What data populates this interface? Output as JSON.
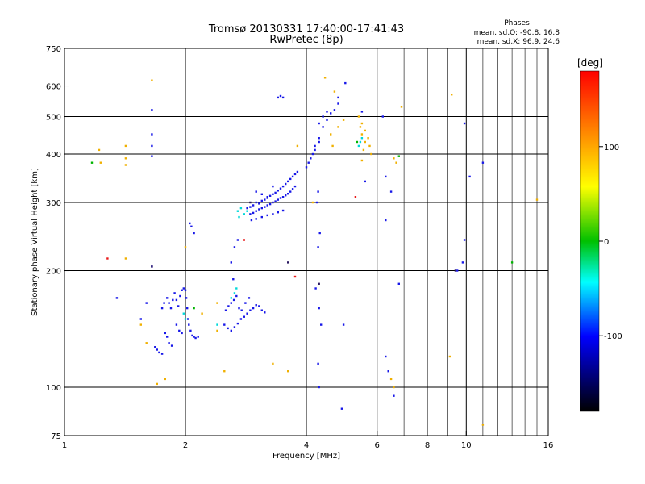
{
  "header": {
    "title_line1": "Tromsø 20130331 17:40:00-17:41:43",
    "title_line2": "RwPretec (8p)"
  },
  "phases": {
    "heading": "Phases",
    "line_o": "mean, sd,O: -90.8, 16.8",
    "line_x": "mean, sd,X:  96.9, 24.6"
  },
  "chart_data": {
    "type": "scatter",
    "xlabel": "Frequency [MHz]",
    "ylabel": "Stationary phase Virtual Height [km]",
    "xscale": "log",
    "yscale": "log",
    "xlim": [
      1,
      16
    ],
    "ylim": [
      75,
      750
    ],
    "x_ticks": [
      1,
      2,
      4,
      6,
      8,
      10,
      16
    ],
    "y_ticks": [
      75,
      100,
      200,
      300,
      400,
      500,
      600,
      750
    ],
    "x_major_grid": [
      2,
      4,
      6,
      8,
      10
    ],
    "x_minor_grid": [
      7,
      9,
      11,
      12,
      13,
      14,
      15
    ],
    "y_grid": [
      100,
      200,
      300,
      400,
      500,
      600
    ],
    "grid": true,
    "colorbar": {
      "label": "[deg]",
      "range": [
        -180,
        180
      ],
      "ticks": [
        100,
        0,
        -100
      ],
      "colors": [
        "#ff0000",
        "#ff8000",
        "#ffff00",
        "#00c000",
        "#00ffff",
        "#0000ff",
        "#000000"
      ]
    },
    "series": [
      {
        "mode": "O",
        "color": "#1818e8",
        "points": [
          [
            1.65,
            450
          ],
          [
            1.65,
            420
          ],
          [
            1.65,
            395
          ],
          [
            1.65,
            520
          ],
          [
            1.65,
            205
          ],
          [
            1.35,
            170
          ],
          [
            1.75,
            160
          ],
          [
            1.77,
            165
          ],
          [
            1.8,
            170
          ],
          [
            1.82,
            165
          ],
          [
            1.84,
            160
          ],
          [
            1.86,
            168
          ],
          [
            1.88,
            175
          ],
          [
            1.9,
            168
          ],
          [
            1.92,
            162
          ],
          [
            1.94,
            172
          ],
          [
            1.96,
            178
          ],
          [
            1.98,
            180
          ],
          [
            2.0,
            178
          ],
          [
            2.01,
            170
          ],
          [
            2.02,
            160
          ],
          [
            2.03,
            150
          ],
          [
            2.04,
            145
          ],
          [
            2.06,
            140
          ],
          [
            2.08,
            136
          ],
          [
            2.1,
            135
          ],
          [
            2.12,
            134
          ],
          [
            2.15,
            135
          ],
          [
            1.78,
            138
          ],
          [
            1.8,
            135
          ],
          [
            1.82,
            130
          ],
          [
            1.85,
            128
          ],
          [
            1.7,
            125
          ],
          [
            1.72,
            123
          ],
          [
            1.75,
            122
          ],
          [
            1.68,
            127
          ],
          [
            1.9,
            145
          ],
          [
            1.93,
            140
          ],
          [
            1.96,
            138
          ],
          [
            2.5,
            145
          ],
          [
            2.55,
            142
          ],
          [
            2.6,
            140
          ],
          [
            2.65,
            143
          ],
          [
            2.7,
            146
          ],
          [
            2.75,
            150
          ],
          [
            2.8,
            152
          ],
          [
            2.85,
            155
          ],
          [
            2.9,
            158
          ],
          [
            2.95,
            160
          ],
          [
            3.0,
            163
          ],
          [
            3.05,
            162
          ],
          [
            3.1,
            158
          ],
          [
            3.15,
            156
          ],
          [
            2.52,
            158
          ],
          [
            2.56,
            162
          ],
          [
            2.6,
            165
          ],
          [
            2.64,
            168
          ],
          [
            2.68,
            172
          ],
          [
            2.72,
            160
          ],
          [
            2.76,
            158
          ],
          [
            2.82,
            165
          ],
          [
            2.88,
            170
          ],
          [
            2.63,
            190
          ],
          [
            2.6,
            210
          ],
          [
            2.65,
            230
          ],
          [
            2.7,
            240
          ],
          [
            2.05,
            265
          ],
          [
            2.07,
            260
          ],
          [
            2.1,
            250
          ],
          [
            2.85,
            290
          ],
          [
            2.9,
            292
          ],
          [
            2.95,
            295
          ],
          [
            3.0,
            300
          ],
          [
            3.05,
            298
          ],
          [
            3.1,
            303
          ],
          [
            3.15,
            305
          ],
          [
            3.2,
            308
          ],
          [
            3.25,
            312
          ],
          [
            3.3,
            315
          ],
          [
            3.35,
            318
          ],
          [
            3.4,
            322
          ],
          [
            3.45,
            326
          ],
          [
            3.5,
            330
          ],
          [
            3.55,
            335
          ],
          [
            3.6,
            340
          ],
          [
            3.65,
            345
          ],
          [
            3.7,
            350
          ],
          [
            3.75,
            355
          ],
          [
            3.8,
            360
          ],
          [
            2.9,
            280
          ],
          [
            2.95,
            282
          ],
          [
            3.0,
            285
          ],
          [
            3.05,
            288
          ],
          [
            3.1,
            290
          ],
          [
            3.15,
            292
          ],
          [
            3.2,
            295
          ],
          [
            3.25,
            297
          ],
          [
            3.3,
            300
          ],
          [
            3.35,
            302
          ],
          [
            3.4,
            305
          ],
          [
            3.45,
            308
          ],
          [
            3.5,
            310
          ],
          [
            3.55,
            313
          ],
          [
            3.6,
            316
          ],
          [
            3.65,
            320
          ],
          [
            3.7,
            325
          ],
          [
            3.75,
            330
          ],
          [
            2.92,
            270
          ],
          [
            3.0,
            272
          ],
          [
            3.1,
            275
          ],
          [
            3.2,
            278
          ],
          [
            3.3,
            280
          ],
          [
            3.4,
            283
          ],
          [
            3.5,
            286
          ],
          [
            3.0,
            320
          ],
          [
            3.1,
            315
          ],
          [
            3.2,
            310
          ],
          [
            3.3,
            330
          ],
          [
            3.4,
            560
          ],
          [
            3.45,
            565
          ],
          [
            3.5,
            560
          ],
          [
            4.2,
            420
          ],
          [
            4.3,
            440
          ],
          [
            4.4,
            470
          ],
          [
            4.5,
            490
          ],
          [
            4.6,
            510
          ],
          [
            4.7,
            520
          ],
          [
            4.8,
            540
          ],
          [
            4.3,
            480
          ],
          [
            4.4,
            500
          ],
          [
            4.5,
            515
          ],
          [
            4.8,
            560
          ],
          [
            5.0,
            610
          ],
          [
            5.5,
            515
          ],
          [
            6.2,
            500
          ],
          [
            5.6,
            340
          ],
          [
            6.3,
            350
          ],
          [
            6.5,
            320
          ],
          [
            6.3,
            270
          ],
          [
            4.0,
            370
          ],
          [
            4.05,
            380
          ],
          [
            4.1,
            390
          ],
          [
            4.15,
            400
          ],
          [
            4.2,
            410
          ],
          [
            4.3,
            430
          ],
          [
            4.25,
            300
          ],
          [
            4.28,
            320
          ],
          [
            4.32,
            250
          ],
          [
            4.28,
            230
          ],
          [
            4.22,
            180
          ],
          [
            4.3,
            160
          ],
          [
            4.35,
            145
          ],
          [
            4.28,
            115
          ],
          [
            4.3,
            100
          ],
          [
            4.95,
            145
          ],
          [
            4.9,
            88
          ],
          [
            6.3,
            120
          ],
          [
            6.4,
            110
          ],
          [
            6.6,
            95
          ],
          [
            6.8,
            185
          ],
          [
            9.5,
            200
          ],
          [
            9.8,
            210
          ],
          [
            9.9,
            480
          ],
          [
            10.2,
            350
          ],
          [
            11.0,
            380
          ],
          [
            9.9,
            240
          ],
          [
            1.6,
            165
          ],
          [
            1.55,
            150
          ]
        ]
      },
      {
        "mode": "X",
        "color": "#f0b000",
        "points": [
          [
            1.65,
            620
          ],
          [
            1.42,
            420
          ],
          [
            1.42,
            390
          ],
          [
            1.42,
            375
          ],
          [
            1.22,
            410
          ],
          [
            1.6,
            130
          ],
          [
            1.55,
            145
          ],
          [
            1.7,
            102
          ],
          [
            1.78,
            105
          ],
          [
            2.5,
            110
          ],
          [
            3.3,
            115
          ],
          [
            2.4,
            140
          ],
          [
            3.6,
            110
          ],
          [
            2.4,
            165
          ],
          [
            4.45,
            630
          ],
          [
            4.7,
            580
          ],
          [
            4.8,
            470
          ],
          [
            4.65,
            420
          ],
          [
            4.6,
            450
          ],
          [
            4.95,
            490
          ],
          [
            5.4,
            500
          ],
          [
            5.5,
            480
          ],
          [
            5.6,
            460
          ],
          [
            5.7,
            440
          ],
          [
            5.75,
            420
          ],
          [
            5.8,
            400
          ],
          [
            5.45,
            470
          ],
          [
            5.5,
            450
          ],
          [
            5.6,
            430
          ],
          [
            5.55,
            410
          ],
          [
            6.6,
            390
          ],
          [
            6.7,
            380
          ],
          [
            6.9,
            530
          ],
          [
            9.2,
            570
          ],
          [
            9.1,
            120
          ],
          [
            11.0,
            80
          ],
          [
            15.0,
            305
          ],
          [
            6.5,
            105
          ],
          [
            6.6,
            100
          ],
          [
            4.15,
            300
          ],
          [
            3.8,
            420
          ],
          [
            2.2,
            155
          ],
          [
            2.0,
            230
          ],
          [
            1.42,
            215
          ],
          [
            1.23,
            380
          ],
          [
            5.5,
            385
          ]
        ]
      },
      {
        "mode": "other",
        "color": "#00d8d8",
        "points": [
          [
            2.7,
            285
          ],
          [
            2.75,
            290
          ],
          [
            2.8,
            280
          ],
          [
            2.72,
            275
          ],
          [
            2.85,
            285
          ],
          [
            2.68,
            180
          ],
          [
            2.6,
            170
          ],
          [
            2.65,
            175
          ],
          [
            2.0,
            150
          ],
          [
            1.98,
            155
          ],
          [
            5.45,
            430
          ],
          [
            5.5,
            440
          ],
          [
            5.4,
            420
          ],
          [
            2.4,
            145
          ]
        ]
      },
      {
        "mode": "other",
        "color": "#00b400",
        "points": [
          [
            1.17,
            380
          ],
          [
            6.8,
            395
          ],
          [
            13.0,
            210
          ],
          [
            5.35,
            430
          ],
          [
            2.1,
            160
          ]
        ]
      },
      {
        "mode": "other",
        "color": "#e81818",
        "points": [
          [
            3.75,
            193
          ],
          [
            2.8,
            240
          ],
          [
            1.28,
            215
          ],
          [
            5.3,
            310
          ]
        ]
      },
      {
        "mode": "other",
        "color": "#2a1860",
        "points": [
          [
            4.3,
            185
          ],
          [
            3.6,
            210
          ],
          [
            9.4,
            200
          ],
          [
            1.65,
            205
          ],
          [
            2.9,
            300
          ]
        ]
      }
    ]
  }
}
